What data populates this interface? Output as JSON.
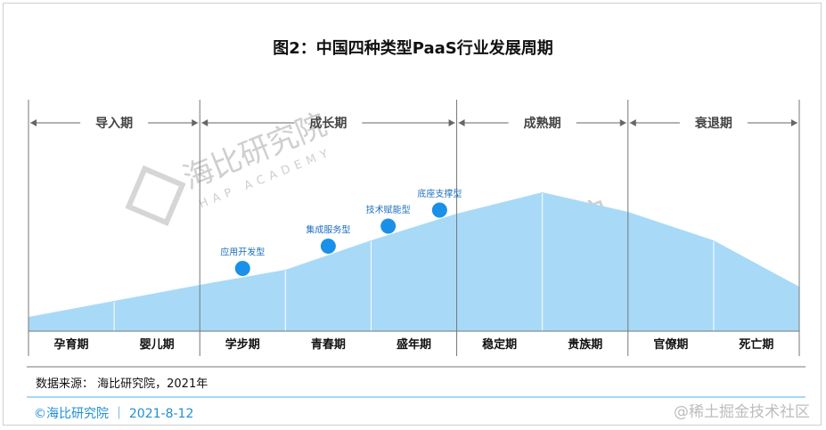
{
  "title": "图2：中国四种类型PaaS行业发展周期",
  "phases": [
    {
      "label": "导入期",
      "start": 0,
      "end": 2
    },
    {
      "label": "成长期",
      "start": 2,
      "end": 5
    },
    {
      "label": "成熟期",
      "start": 5,
      "end": 7
    },
    {
      "label": "衰退期",
      "start": 7,
      "end": 9
    }
  ],
  "stages": [
    "孕育期",
    "婴儿期",
    "学步期",
    "青春期",
    "盛年期",
    "稳定期",
    "贵族期",
    "官僚期",
    "死亡期"
  ],
  "markers": [
    {
      "label": "应用开发型",
      "pos": 2.5
    },
    {
      "label": "集成服务型",
      "pos": 3.5
    },
    {
      "label": "技术赋能型",
      "pos": 4.2
    },
    {
      "label": "底座支撑型",
      "pos": 4.8
    }
  ],
  "watermark": {
    "name": "海比研究院",
    "sub": "HAP ACADEMY"
  },
  "source_text": "数据来源： 海比研究院，2021年",
  "footer_left": "©海比研究院 ｜ 2021-8-12",
  "footer_right": "@稀土掘金技术社区",
  "colors": {
    "area": "#a8daf7",
    "marker": "#1a90e8",
    "footer_line": "#6fc3f0"
  }
}
